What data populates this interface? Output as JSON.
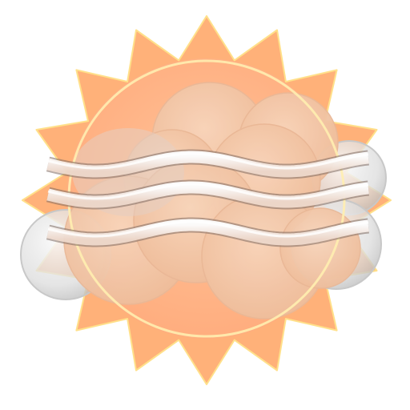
{
  "icon": {
    "name": "sun-clouds-fog-weather-icon",
    "colors": {
      "sun_rays": "#ffb179",
      "sun_rays_stroke": "#ffe08a",
      "sun_disc": "#ffb486",
      "sun_ring": "#ffeeb0",
      "cloud_fill": "#f4c9aa",
      "cloud_glass": "#e8e8e8",
      "fog_band": "#ffffff",
      "fog_outline": "#7d6a60"
    }
  }
}
